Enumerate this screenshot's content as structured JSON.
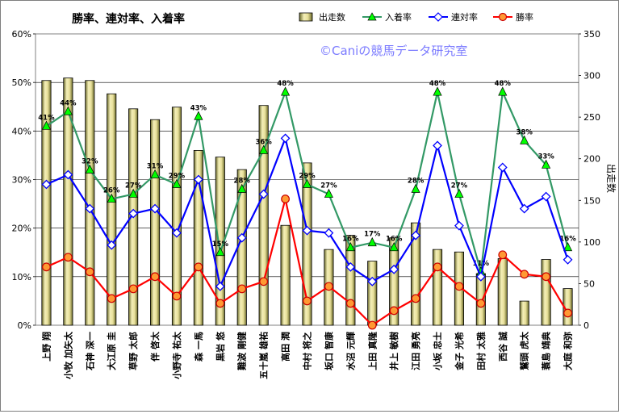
{
  "chart_data": {
    "type": "bar+line",
    "title": "勝率、連対率、入着率",
    "watermark": "©Caniの競馬データ研究室",
    "categories": [
      "上野 翔",
      "小牧 加矢太",
      "石神 深一",
      "大江原 圭",
      "草野 太郎",
      "伴 啓太",
      "小野寺 祐太",
      "森 一馬",
      "黒岩 悠",
      "難波 剛健",
      "五十嵐 雄祐",
      "高田 潤",
      "中村 将之",
      "坂口 智康",
      "水沼 元輝",
      "上田 真隆",
      "井上 敏樹",
      "江田 勇亮",
      "小坂 忠士",
      "金子 光希",
      "田村 太雅",
      "西谷 誠",
      "鷲頭 虎太",
      "蓑島 靖典",
      "大庭 和弥"
    ],
    "left_axis": {
      "min": 0,
      "max": 0.6,
      "ticks": [
        "0%",
        "10%",
        "20%",
        "30%",
        "40%",
        "50%",
        "60%"
      ]
    },
    "right_axis": {
      "label": "出走数",
      "min": 0,
      "max": 350,
      "ticks": [
        "0",
        "50",
        "100",
        "150",
        "200",
        "250",
        "300",
        "350"
      ]
    },
    "legend": [
      "出走数",
      "入着率",
      "連対率",
      "勝率"
    ],
    "legend_position": "top",
    "grid": true,
    "series": [
      {
        "name": "出走数",
        "type": "bar",
        "axis": "right",
        "color": "#ece6a6",
        "values": [
          294,
          297,
          294,
          278,
          260,
          247,
          262,
          210,
          202,
          187,
          264,
          120,
          195,
          91,
          108,
          77,
          105,
          123,
          91,
          88,
          62,
          80,
          29,
          79,
          44
        ]
      },
      {
        "name": "入着率",
        "type": "line",
        "axis": "left",
        "color": "#339966",
        "values": [
          0.41,
          0.44,
          0.32,
          0.26,
          0.27,
          0.31,
          0.29,
          0.43,
          0.15,
          0.28,
          0.36,
          0.48,
          0.29,
          0.27,
          0.16,
          0.17,
          0.16,
          0.28,
          0.48,
          0.27,
          0.11,
          0.48,
          0.38,
          0.33,
          0.16
        ],
        "labels": [
          "41%",
          "44%",
          "32%",
          "26%",
          "27%",
          "31%",
          "29%",
          "43%",
          "15%",
          "28%",
          "36%",
          "48%",
          "29%",
          "27%",
          "16%",
          "17%",
          "16%",
          "28%",
          "48%",
          "27%",
          "11%",
          "48%",
          "38%",
          "33%",
          "16%"
        ]
      },
      {
        "name": "連対率",
        "type": "line",
        "axis": "left",
        "color": "#0000ff",
        "values": [
          0.29,
          0.31,
          0.24,
          0.165,
          0.23,
          0.24,
          0.19,
          0.3,
          0.08,
          0.18,
          0.27,
          0.385,
          0.195,
          0.19,
          0.12,
          0.09,
          0.115,
          0.185,
          0.37,
          0.205,
          0.1,
          0.325,
          0.24,
          0.265,
          0.135
        ]
      },
      {
        "name": "勝率",
        "type": "line",
        "axis": "left",
        "color": "#ff0000",
        "values": [
          0.12,
          0.14,
          0.11,
          0.055,
          0.075,
          0.1,
          0.06,
          0.12,
          0.045,
          0.075,
          0.09,
          0.26,
          0.05,
          0.08,
          0.045,
          0.0,
          0.03,
          0.055,
          0.12,
          0.08,
          0.045,
          0.145,
          0.105,
          0.1,
          0.025
        ]
      }
    ]
  }
}
